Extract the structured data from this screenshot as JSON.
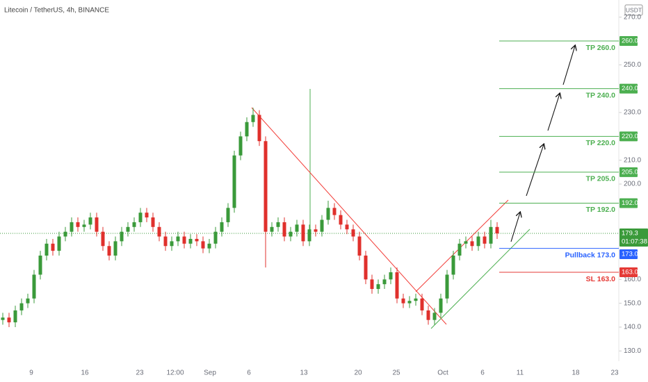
{
  "chart_data": {
    "type": "candlestick",
    "title": "Litecoin / TetherUS, 4h, BINANCE",
    "currency": "USDT",
    "up_color": "#3a9a3a",
    "down_color": "#e0302c",
    "categories": [
      "9",
      "16",
      "23",
      "12:00",
      "Sep",
      "6",
      "13",
      "20",
      "25",
      "Oct",
      "6",
      "11",
      "18",
      "23"
    ],
    "open": [
      143,
      144,
      142,
      147,
      150,
      152,
      162,
      170,
      175,
      172,
      178,
      180,
      184,
      182,
      183,
      186,
      180,
      174,
      170,
      176,
      180,
      182,
      184,
      188,
      186,
      182,
      178,
      174,
      176,
      178,
      175,
      177,
      176,
      173,
      175,
      180,
      184,
      190,
      212,
      220,
      226,
      229,
      218,
      180,
      182,
      184,
      178,
      180,
      183,
      176,
      181,
      180,
      185,
      190,
      187,
      183,
      181,
      178,
      170,
      160,
      156,
      158,
      160,
      163,
      152,
      150,
      151,
      152,
      147,
      143,
      146,
      152,
      162,
      170,
      175,
      176,
      174,
      178,
      175,
      182
    ],
    "high": [
      146,
      146,
      149,
      152,
      154,
      164,
      172,
      177,
      177,
      180,
      182,
      186,
      186,
      185,
      188,
      188,
      182,
      176,
      178,
      182,
      184,
      186,
      190,
      190,
      188,
      184,
      180,
      178,
      180,
      180,
      179,
      179,
      178,
      177,
      182,
      186,
      192,
      214,
      222,
      228,
      232,
      231,
      220,
      184,
      186,
      186,
      182,
      185,
      185,
      183,
      183,
      187,
      193,
      192,
      189,
      185,
      183,
      180,
      172,
      162,
      160,
      162,
      165,
      165,
      154,
      153,
      154,
      154,
      149,
      148,
      154,
      164,
      172,
      177,
      178,
      178,
      180,
      180,
      185,
      184
    ],
    "low": [
      141,
      140,
      140,
      145,
      148,
      150,
      160,
      168,
      170,
      170,
      176,
      178,
      180,
      180,
      181,
      178,
      172,
      168,
      168,
      174,
      178,
      180,
      182,
      184,
      180,
      176,
      172,
      172,
      174,
      173,
      173,
      174,
      171,
      171,
      173,
      178,
      182,
      188,
      210,
      218,
      224,
      216,
      165,
      178,
      180,
      176,
      176,
      178,
      174,
      174,
      178,
      178,
      183,
      185,
      181,
      179,
      176,
      168,
      158,
      154,
      154,
      156,
      158,
      150,
      148,
      148,
      149,
      145,
      141,
      141,
      144,
      150,
      160,
      168,
      173,
      172,
      172,
      173,
      173,
      177
    ],
    "close": [
      144,
      142,
      147,
      150,
      152,
      162,
      170,
      175,
      172,
      178,
      180,
      184,
      182,
      183,
      186,
      180,
      174,
      170,
      176,
      180,
      182,
      184,
      188,
      186,
      182,
      178,
      174,
      176,
      178,
      175,
      177,
      176,
      173,
      175,
      180,
      184,
      190,
      212,
      220,
      226,
      229,
      218,
      180,
      182,
      184,
      178,
      180,
      183,
      176,
      181,
      180,
      185,
      190,
      187,
      183,
      181,
      178,
      170,
      160,
      156,
      158,
      160,
      163,
      152,
      150,
      151,
      152,
      147,
      143,
      146,
      152,
      162,
      170,
      175,
      176,
      174,
      178,
      175,
      182,
      179.3
    ],
    "ylim": [
      130,
      270
    ],
    "yticks": [
      {
        "value": 270,
        "label": "270.0"
      },
      {
        "value": 250,
        "label": "250.0"
      },
      {
        "value": 230,
        "label": "230.0"
      },
      {
        "value": 210,
        "label": "210.0"
      },
      {
        "value": 200,
        "label": "200.0"
      },
      {
        "value": 160,
        "label": "160.0"
      },
      {
        "value": 150,
        "label": "150.0"
      },
      {
        "value": 140,
        "label": "140.0"
      },
      {
        "value": 130,
        "label": "130.0"
      }
    ],
    "current_price": {
      "value": 179.3,
      "countdown": "01:07:38",
      "color": "#3a9a3a"
    },
    "levels": [
      {
        "name": "TP 260.0",
        "value": 260,
        "value_label": "260.0",
        "color": "#4caf50"
      },
      {
        "name": "TP 240.0",
        "value": 240,
        "value_label": "240.0",
        "color": "#4caf50"
      },
      {
        "name": "TP 220.0",
        "value": 220,
        "value_label": "220.0",
        "color": "#4caf50"
      },
      {
        "name": "TP 205.0",
        "value": 205,
        "value_label": "205.0",
        "color": "#4caf50"
      },
      {
        "name": "TP 192.0",
        "value": 192,
        "value_label": "192.0",
        "color": "#4caf50"
      },
      {
        "name": "Pullback 173.0",
        "value": 173,
        "value_label": "173.0",
        "color": "#2962ff"
      },
      {
        "name": "SL 163.0",
        "value": 163,
        "value_label": "163.0",
        "color": "#e53935"
      }
    ]
  }
}
